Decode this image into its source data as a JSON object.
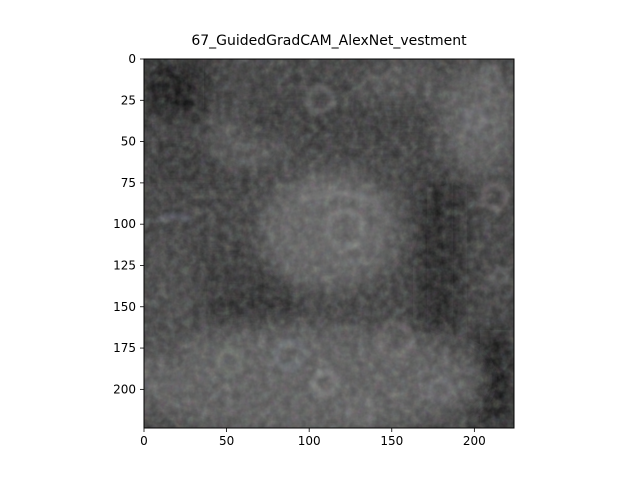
{
  "chart_data": {
    "type": "heatmap",
    "title": "67_GuidedGradCAM_AlexNet_vestment",
    "xlabel": "",
    "ylabel": "",
    "xlim": [
      0,
      224
    ],
    "ylim": [
      224,
      0
    ],
    "x_ticks": [
      "0",
      "50",
      "100",
      "150",
      "200"
    ],
    "y_ticks": [
      "0",
      "25",
      "50",
      "75",
      "100",
      "125",
      "150",
      "175",
      "200"
    ],
    "grid": false,
    "legend": "none"
  },
  "colors": {
    "background": "#ffffff",
    "image_base": "#3a3a3a",
    "axis": "#000000"
  }
}
